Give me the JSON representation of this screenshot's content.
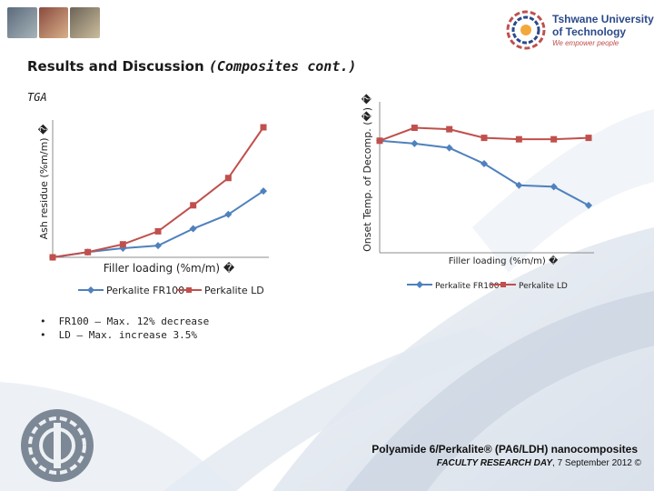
{
  "header": {
    "logo_line1": "Tshwane University",
    "logo_line2": "of Technology",
    "logo_tagline": "We empower people"
  },
  "slide": {
    "title": "Results and Discussion",
    "title_cont": "(Composites cont.)",
    "section_label": "TGA"
  },
  "bullets": [
    {
      "marker": "•",
      "text": "FR100 – Max. 12% decrease"
    },
    {
      "marker": "•",
      "text": "LD – Max. increase 3.5%"
    }
  ],
  "footer": {
    "title": "Polyamide 6/Perkalite® (PA6/LDH) nanocomposites",
    "sub_bold": "FACULTY RESEARCH DAY",
    "sub_rest": ", 7 September 2012 ©"
  },
  "colors": {
    "fr100": "#4f81bd",
    "ld": "#c0504d",
    "axis": "#8c8c8c",
    "brand": "#2b4a8a"
  },
  "chart_data": [
    {
      "type": "line",
      "title": "",
      "xlabel": "Filler loading (%m/m) �",
      "ylabel": "Ash residue (%m/m) �",
      "x": [
        0,
        1,
        2,
        3,
        4,
        5,
        6
      ],
      "ylim": [
        0,
        100
      ],
      "legend_position": "bottom",
      "series": [
        {
          "name": "Perkalite FR100",
          "color": "#4f81bd",
          "marker": "diamond",
          "values": [
            0,
            4,
            7,
            9,
            22,
            33,
            51
          ]
        },
        {
          "name": "Perkalite LD",
          "color": "#c0504d",
          "marker": "square",
          "values": [
            0,
            4,
            10,
            20,
            40,
            61,
            100
          ]
        }
      ]
    },
    {
      "type": "line",
      "title": "",
      "xlabel": "Filler loading (%m/m) �",
      "ylabel": "Onset Temp. of Decomp. (�) �",
      "x": [
        0,
        1,
        2,
        3,
        4,
        5,
        6
      ],
      "ylim": [
        0,
        100
      ],
      "legend_position": "bottom",
      "series": [
        {
          "name": "Perkalite FR100",
          "color": "#4f81bd",
          "marker": "diamond",
          "values": [
            78,
            76,
            73,
            62,
            47,
            46,
            33
          ]
        },
        {
          "name": "Perkalite LD",
          "color": "#c0504d",
          "marker": "square",
          "values": [
            78,
            87,
            86,
            80,
            79,
            79,
            80
          ]
        }
      ]
    }
  ]
}
